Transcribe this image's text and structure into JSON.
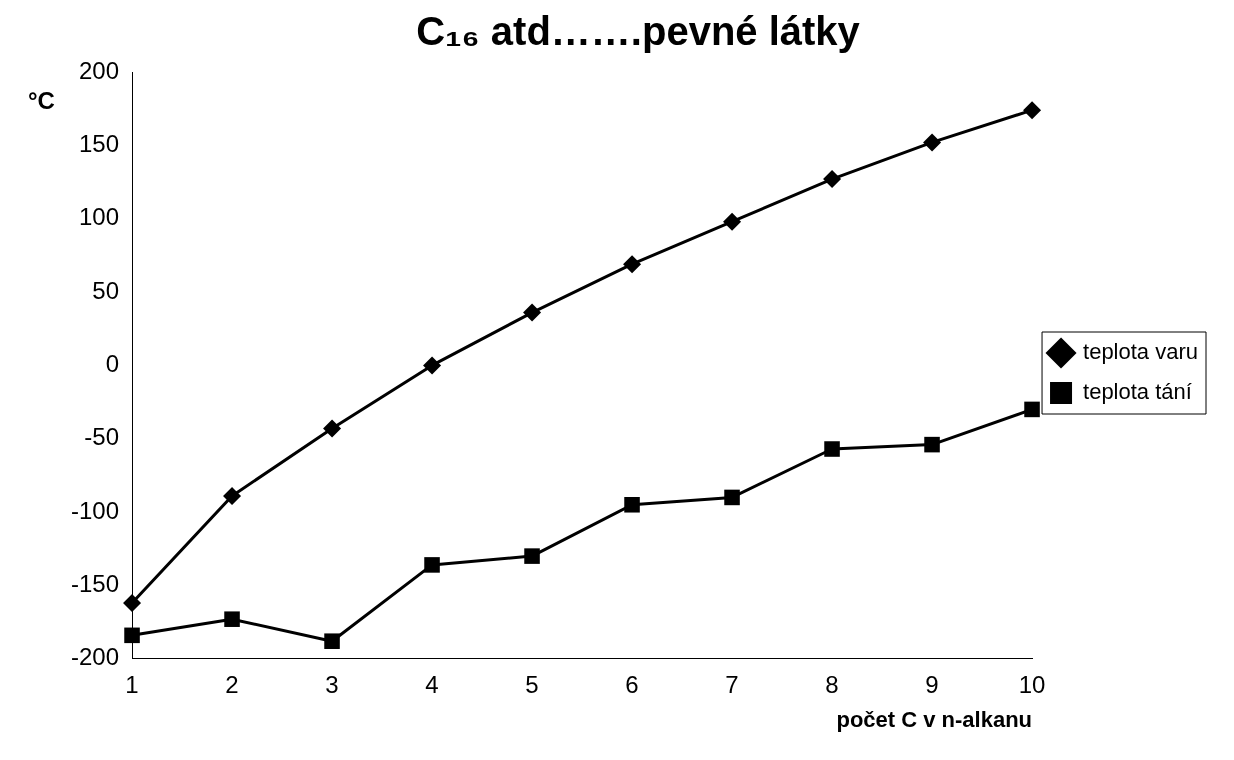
{
  "chart_data": {
    "type": "line",
    "title": "C₁₆ atd…….pevné látky",
    "xlabel": "počet C v n-alkanu",
    "ylabel": "°C",
    "x": [
      1,
      2,
      3,
      4,
      5,
      6,
      7,
      8,
      9,
      10
    ],
    "series": [
      {
        "name": "teplota varu",
        "color": "#000000",
        "marker": "diamond",
        "values": [
          -162,
          -89,
          -43,
          0,
          36,
          69,
          98,
          127,
          152,
          174
        ]
      },
      {
        "name": "teplota tání",
        "color": "#000000",
        "marker": "square",
        "values": [
          -184,
          -173,
          -188,
          -136,
          -130,
          -95,
          -90,
          -57,
          -54,
          -30
        ]
      }
    ],
    "xlim": [
      1,
      10
    ],
    "xticks": [
      1,
      2,
      3,
      4,
      5,
      6,
      7,
      8,
      9,
      10
    ],
    "ylim": [
      -200,
      200
    ],
    "yticks": [
      -200,
      -150,
      -100,
      -50,
      0,
      50,
      100,
      150,
      200
    ],
    "grid": false,
    "legend": "right",
    "line_style": "solid"
  }
}
